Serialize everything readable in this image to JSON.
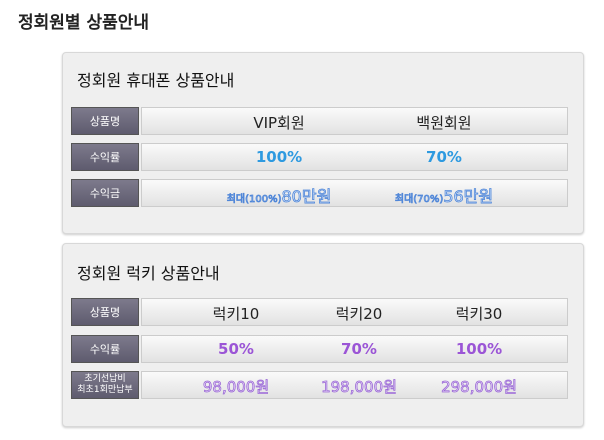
{
  "header": {
    "title": "정회원별 상품안내"
  },
  "sections": [
    {
      "title": "정회원 휴대폰 상품안내",
      "rows": [
        {
          "label": "상품명",
          "cells": [
            "VIP회원",
            "백원회원"
          ]
        },
        {
          "label": "수익률",
          "cells": [
            "100%",
            "70%"
          ]
        },
        {
          "label": "수익금",
          "cells": [
            {
              "prefix": "최대(100%)",
              "amount": "80만원"
            },
            {
              "prefix": "최대(70%)",
              "amount": "56만원"
            }
          ]
        }
      ]
    },
    {
      "title": "정회원 럭키 상품안내",
      "rows": [
        {
          "label": "상품명",
          "cells": [
            "럭키10",
            "럭키20",
            "럭키30"
          ]
        },
        {
          "label": "수익률",
          "cells": [
            "50%",
            "70%",
            "100%"
          ]
        },
        {
          "label": [
            "초기선납비",
            "최초1회만납부"
          ],
          "cells": [
            "98,000원",
            "198,000원",
            "298,000원"
          ]
        }
      ]
    }
  ]
}
